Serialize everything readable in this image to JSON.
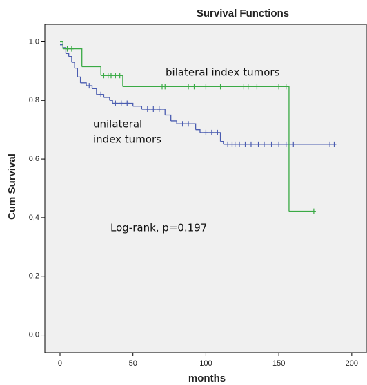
{
  "chart_data": {
    "type": "km",
    "title": "Survival Functions",
    "x_label": "months",
    "y_label": "Cum Survival",
    "xlim": [
      -10.4,
      210
    ],
    "ylim": [
      -0.06,
      1.06
    ],
    "xticks": [
      0,
      50,
      100,
      150,
      200
    ],
    "yticks": [
      {
        "value": 0,
        "label": "0,0"
      },
      {
        "value": 0.2,
        "label": "0,2"
      },
      {
        "value": 0.4,
        "label": "0,4"
      },
      {
        "value": 0.6,
        "label": "0,6"
      },
      {
        "value": 0.8,
        "label": "0,8"
      },
      {
        "value": 1,
        "label": "1,0"
      }
    ],
    "series": [
      {
        "color": "#4a5cb0",
        "x": [
          0,
          2,
          4,
          6,
          8,
          10,
          12,
          14,
          18,
          22,
          25,
          30,
          34,
          36,
          50,
          56,
          72,
          76,
          80,
          93,
          96,
          110,
          112
        ],
        "values": [
          0.99,
          0.98,
          0.96,
          0.95,
          0.93,
          0.91,
          0.88,
          0.86,
          0.85,
          0.84,
          0.82,
          0.81,
          0.8,
          0.79,
          0.78,
          0.77,
          0.75,
          0.73,
          0.72,
          0.7,
          0.69,
          0.66,
          0.65
        ],
        "censored": {
          "x": [
            20,
            28,
            38,
            42,
            46,
            60,
            64,
            68,
            84,
            88,
            100,
            104,
            108,
            115,
            118,
            120,
            123,
            127,
            131,
            136,
            140,
            145,
            150,
            155,
            160,
            185,
            188
          ],
          "values": [
            0.85,
            0.82,
            0.79,
            0.79,
            0.79,
            0.77,
            0.77,
            0.77,
            0.72,
            0.72,
            0.69,
            0.69,
            0.69,
            0.65,
            0.65,
            0.65,
            0.65,
            0.65,
            0.65,
            0.65,
            0.65,
            0.65,
            0.65,
            0.65,
            0.65,
            0.65,
            0.65
          ]
        }
      },
      {
        "color": "#3aaa45",
        "x": [
          0,
          2,
          15,
          28,
          43,
          157
        ],
        "values": [
          1.0,
          0.976,
          0.915,
          0.885,
          0.847,
          0.422
        ],
        "censored": {
          "x": [
            5,
            8,
            30,
            33,
            35,
            38,
            41,
            70,
            72,
            88,
            92,
            100,
            110,
            126,
            129,
            135,
            150,
            155,
            174
          ],
          "values": [
            0.976,
            0.976,
            0.885,
            0.885,
            0.885,
            0.885,
            0.885,
            0.847,
            0.847,
            0.847,
            0.847,
            0.847,
            0.847,
            0.847,
            0.847,
            0.847,
            0.847,
            0.847,
            0.422
          ]
        }
      }
    ],
    "annotations": [
      "bilateral index tumors",
      "unilateral",
      "index tumors",
      "Log-rank, p=0.197"
    ]
  }
}
